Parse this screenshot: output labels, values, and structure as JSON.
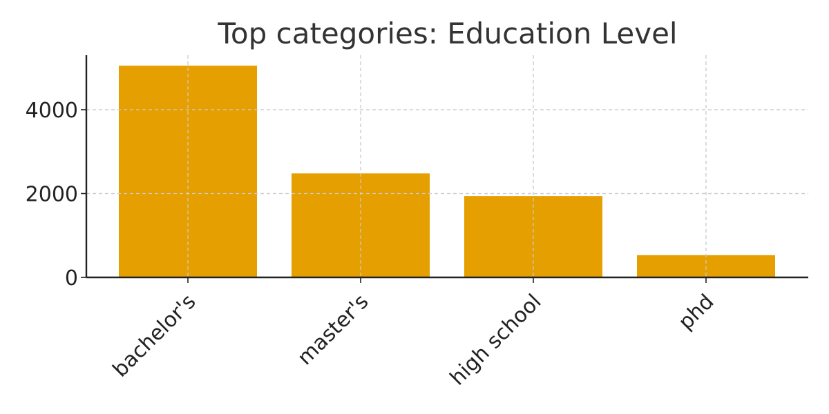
{
  "chart_data": {
    "type": "bar",
    "title": "Top categories: Education Level",
    "xlabel": "",
    "ylabel": "",
    "categories": [
      "bachelor's",
      "master's",
      "high school",
      "phd"
    ],
    "values": [
      5050,
      2480,
      1940,
      530
    ],
    "ylim": [
      0,
      5300
    ],
    "yticks": [
      0,
      2000,
      4000
    ],
    "ytick_labels": [
      "0",
      "2000",
      "4000"
    ],
    "grid": true,
    "legend": "none",
    "bar_color": "#E69F00"
  }
}
